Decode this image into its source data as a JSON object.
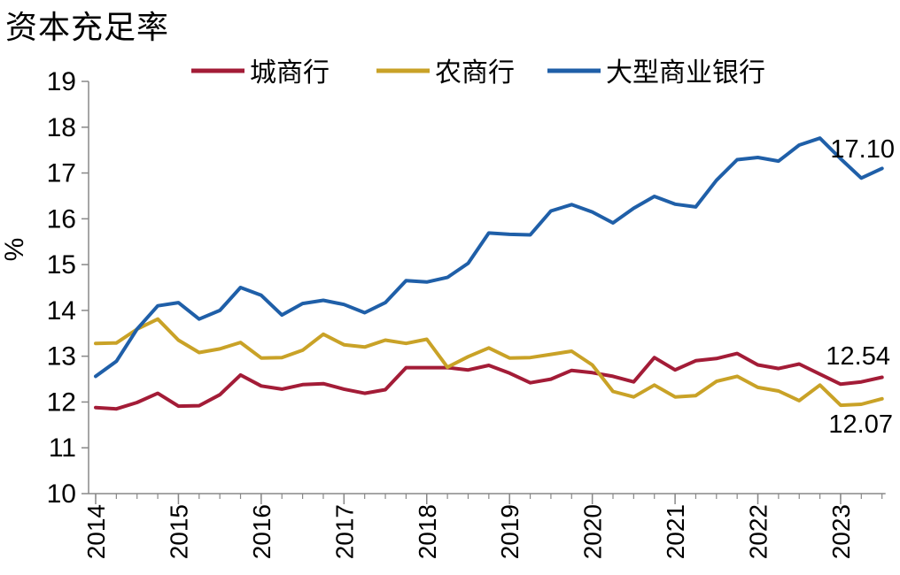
{
  "chart_data": {
    "type": "line",
    "title": "资本充足率",
    "ylabel": "%",
    "xlabel": "",
    "ylim": [
      10,
      19
    ],
    "yticks": [
      "10",
      "11",
      "12",
      "13",
      "14",
      "15",
      "16",
      "17",
      "18",
      "19"
    ],
    "xticks": [
      "2014",
      "2015",
      "2016",
      "2017",
      "2018",
      "2019",
      "2020",
      "2021",
      "2022",
      "2023"
    ],
    "x": [
      "2014-Q1",
      "2014-Q2",
      "2014-Q3",
      "2014-Q4",
      "2015-Q1",
      "2015-Q2",
      "2015-Q3",
      "2015-Q4",
      "2016-Q1",
      "2016-Q2",
      "2016-Q3",
      "2016-Q4",
      "2017-Q1",
      "2017-Q2",
      "2017-Q3",
      "2017-Q4",
      "2018-Q1",
      "2018-Q2",
      "2018-Q3",
      "2018-Q4",
      "2019-Q1",
      "2019-Q2",
      "2019-Q3",
      "2019-Q4",
      "2020-Q1",
      "2020-Q2",
      "2020-Q3",
      "2020-Q4",
      "2021-Q1",
      "2021-Q2",
      "2021-Q3",
      "2021-Q4",
      "2022-Q1",
      "2022-Q2",
      "2022-Q3",
      "2022-Q4",
      "2023-Q1",
      "2023-Q2",
      "2023-Q3"
    ],
    "legend_position": "top",
    "grid": false,
    "series": [
      {
        "name": "城商行",
        "color": "#A31C37",
        "values": [
          11.88,
          11.85,
          11.99,
          12.19,
          11.91,
          11.92,
          12.16,
          12.59,
          12.35,
          12.28,
          12.38,
          12.4,
          12.28,
          12.19,
          12.27,
          12.75,
          12.75,
          12.75,
          12.7,
          12.8,
          12.63,
          12.42,
          12.5,
          12.69,
          12.64,
          12.56,
          12.44,
          12.97,
          12.7,
          12.9,
          12.95,
          13.06,
          12.81,
          12.73,
          12.83,
          12.61,
          12.39,
          12.44,
          12.54
        ],
        "end_label": "12.54"
      },
      {
        "name": "农商行",
        "color": "#C9A227",
        "values": [
          13.28,
          13.29,
          13.59,
          13.81,
          13.35,
          13.08,
          13.16,
          13.3,
          12.96,
          12.97,
          13.13,
          13.48,
          13.25,
          13.2,
          13.35,
          13.28,
          13.37,
          12.76,
          12.99,
          13.18,
          12.96,
          12.97,
          13.04,
          13.11,
          12.81,
          12.23,
          12.11,
          12.37,
          12.11,
          12.14,
          12.45,
          12.56,
          12.32,
          12.24,
          12.03,
          12.37,
          11.93,
          11.95,
          12.07
        ],
        "end_label": "12.07"
      },
      {
        "name": "大型商业银行",
        "color": "#1F5FA8",
        "values": [
          12.56,
          12.89,
          13.59,
          14.1,
          14.17,
          13.81,
          14.0,
          14.5,
          14.33,
          13.9,
          14.15,
          14.22,
          14.13,
          13.95,
          14.17,
          14.65,
          14.62,
          14.72,
          15.03,
          15.69,
          15.66,
          15.65,
          16.17,
          16.31,
          16.15,
          15.91,
          16.23,
          16.49,
          16.32,
          16.26,
          16.84,
          17.29,
          17.34,
          17.26,
          17.61,
          17.76,
          17.31,
          16.89,
          17.1
        ],
        "end_label": "17.10"
      }
    ]
  }
}
